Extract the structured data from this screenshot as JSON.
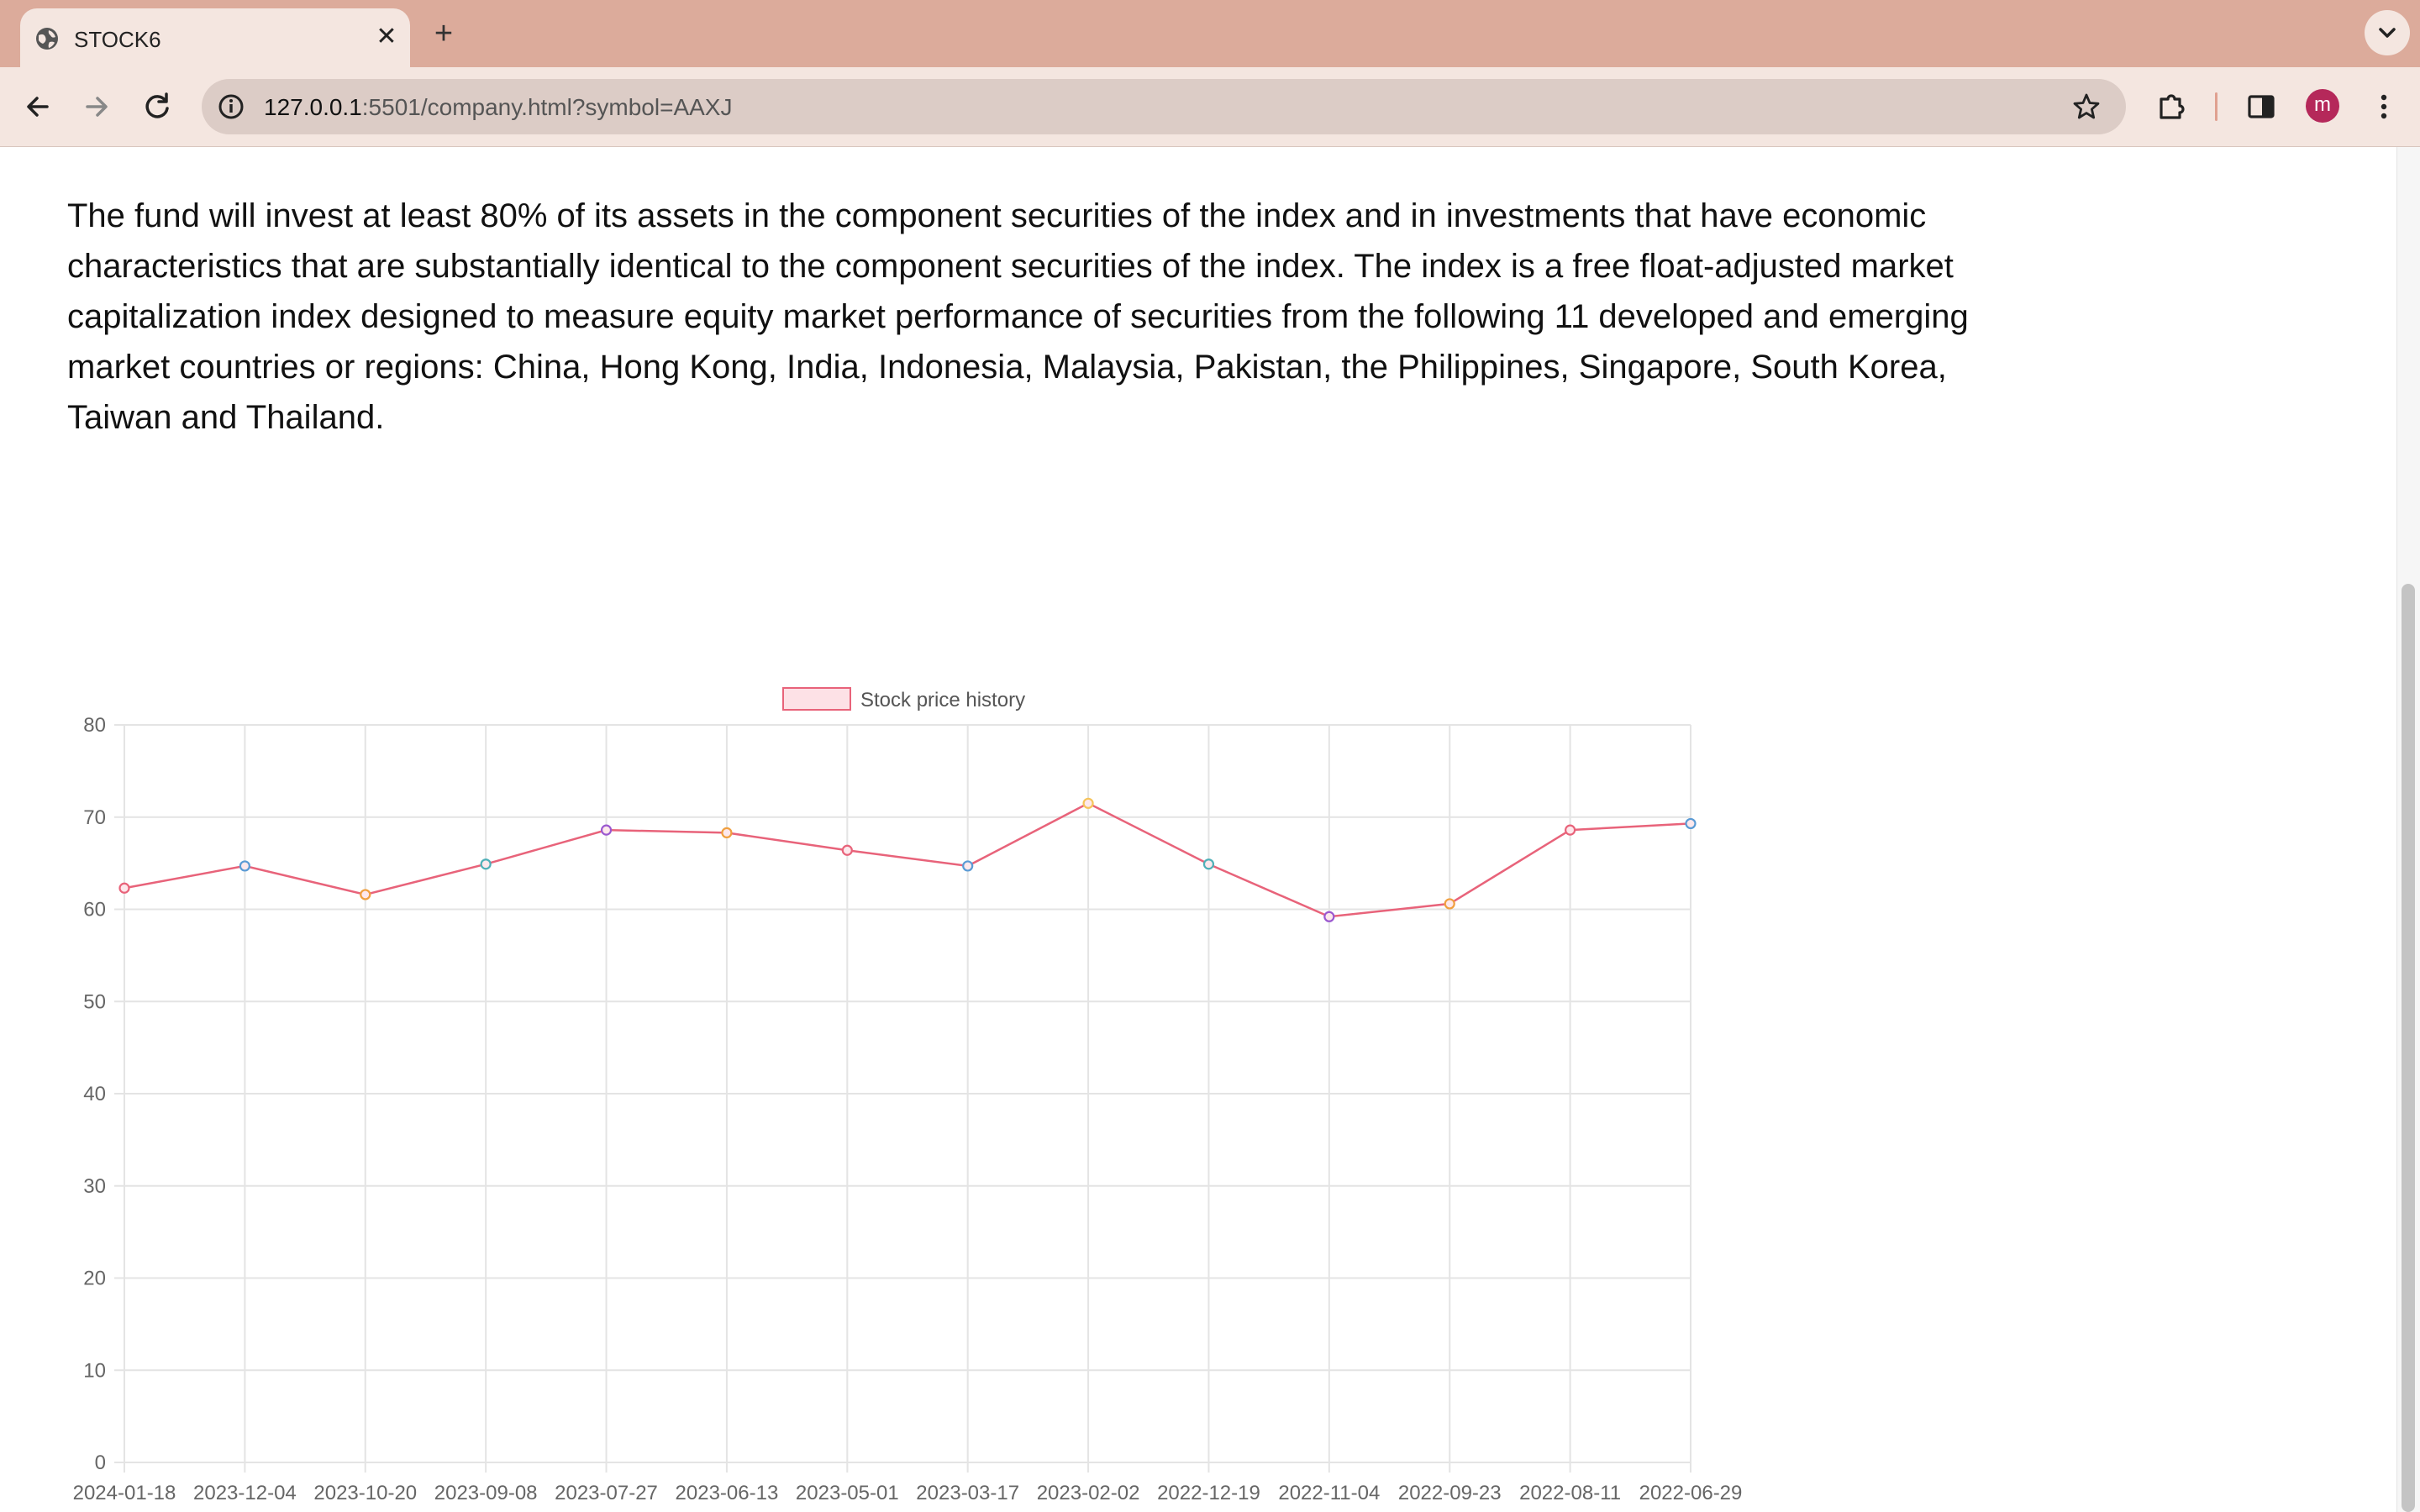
{
  "browser": {
    "tab_title": "STOCK6",
    "close_glyph": "✕",
    "new_tab_glyph": "+",
    "url_host": "127.0.0.1",
    "url_rest": ":5501/company.html?symbol=AAXJ",
    "profile_initial": "m"
  },
  "icons": {
    "tab": "globe-icon",
    "back": "arrow-left-icon",
    "forward": "arrow-right-icon",
    "reload": "reload-icon",
    "site_info": "info-icon",
    "bookmark": "star-icon",
    "extensions": "puzzle-icon",
    "side_panel": "side-panel-icon",
    "menu": "kebab-menu-icon",
    "tab_search": "chevron-down-icon"
  },
  "description": "The fund will invest at least 80% of its assets in the component securities of the index and in investments that have economic characteristics that are substantially identical to the component securities of the index. The index is a free float-adjusted market capitalization index designed to measure equity market performance of securities from the following 11 developed and emerging market countries or regions: China, Hong Kong, India, Indonesia, Malaysia, Pakistan, the Philippines, Singapore, South Korea, Taiwan and Thailand.",
  "chart_data": {
    "type": "line",
    "title": "",
    "xlabel": "",
    "ylabel": "",
    "legend": "top-center",
    "grid": true,
    "ylim": [
      0,
      80
    ],
    "yticks": [
      0,
      10,
      20,
      30,
      40,
      50,
      60,
      70,
      80
    ],
    "categories": [
      "2024-01-18",
      "2023-12-04",
      "2023-10-20",
      "2023-09-08",
      "2023-07-27",
      "2023-06-13",
      "2023-05-01",
      "2023-03-17",
      "2023-02-02",
      "2022-12-19",
      "2022-11-04",
      "2022-09-23",
      "2022-08-11",
      "2022-06-29"
    ],
    "series": [
      {
        "name": "Stock price history",
        "values": [
          62.3,
          64.7,
          61.6,
          64.9,
          68.6,
          68.3,
          66.4,
          64.7,
          71.5,
          64.9,
          59.2,
          60.6,
          68.6,
          69.3
        ],
        "line_color": "#e8637a",
        "fill_color": "#fde1e6",
        "point_colors": [
          "#e8637a",
          "#5b9bd5",
          "#f0a040",
          "#4fb0b8",
          "#9b59d0",
          "#f0a040",
          "#e8637a",
          "#5b9bd5",
          "#f6c45a",
          "#4fb0b8",
          "#9b59d0",
          "#f0a040",
          "#e8637a",
          "#5b9bd5"
        ]
      }
    ]
  }
}
